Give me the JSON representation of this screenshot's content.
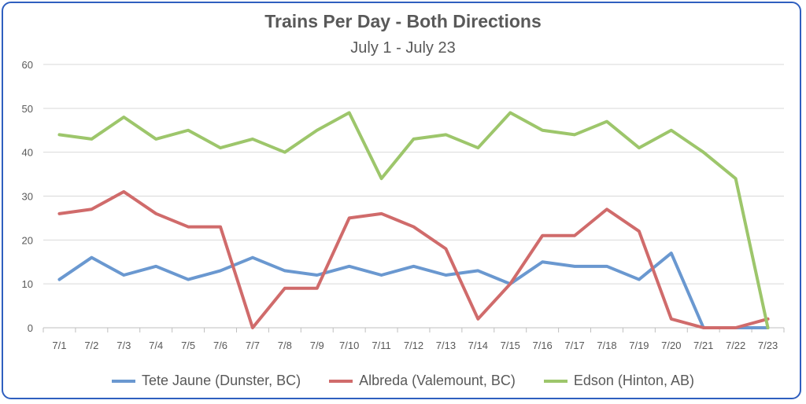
{
  "chart_data": {
    "type": "line",
    "title": "Trains Per Day - Both Directions",
    "subtitle": "July 1 - July 23",
    "xlabel": "",
    "ylabel": "",
    "ylim": [
      0,
      60
    ],
    "yticks": [
      "0",
      "10",
      "20",
      "30",
      "40",
      "50",
      "60"
    ],
    "grid": true,
    "legend_position": "bottom",
    "categories": [
      "7/1",
      "7/2",
      "7/3",
      "7/4",
      "7/5",
      "7/6",
      "7/7",
      "7/8",
      "7/9",
      "7/10",
      "7/11",
      "7/12",
      "7/13",
      "7/14",
      "7/15",
      "7/16",
      "7/17",
      "7/18",
      "7/19",
      "7/20",
      "7/21",
      "7/22",
      "7/23"
    ],
    "series": [
      {
        "name": "Tete Jaune (Dunster, BC)",
        "color": "#6a98d0",
        "values": [
          11,
          16,
          12,
          14,
          11,
          13,
          16,
          13,
          12,
          14,
          12,
          14,
          12,
          13,
          10,
          15,
          14,
          14,
          11,
          17,
          0,
          0,
          0
        ]
      },
      {
        "name": "Albreda (Valemount, BC)",
        "color": "#d06b6b",
        "values": [
          26,
          27,
          31,
          26,
          23,
          23,
          0,
          9,
          9,
          25,
          26,
          23,
          18,
          2,
          10,
          21,
          21,
          27,
          22,
          2,
          0,
          0,
          2
        ]
      },
      {
        "name": "Edson (Hinton, AB)",
        "color": "#9dc66b",
        "values": [
          44,
          43,
          48,
          43,
          45,
          41,
          43,
          40,
          45,
          49,
          34,
          43,
          44,
          41,
          49,
          45,
          44,
          47,
          41,
          45,
          40,
          34,
          0
        ]
      }
    ]
  }
}
